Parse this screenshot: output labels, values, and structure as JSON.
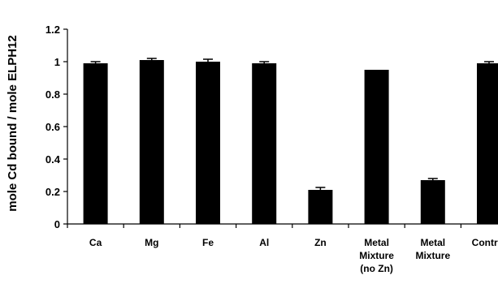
{
  "chart_data": {
    "type": "bar",
    "title": "",
    "xlabel": "",
    "ylabel": "mole Cd bound / mole ELPH12",
    "ylim": [
      0,
      1.2
    ],
    "yticks": [
      0,
      0.2,
      0.4,
      0.6,
      0.8,
      1,
      1.2
    ],
    "ytick_labels": [
      "0",
      "0.2",
      "0.4",
      "0.6",
      "0.8",
      "1",
      "1.2"
    ],
    "grid": false,
    "legend": "none",
    "bar_color": "#000000",
    "categories": [
      [
        "Ca"
      ],
      [
        "Mg"
      ],
      [
        "Fe"
      ],
      [
        "Al"
      ],
      [
        "Zn"
      ],
      [
        "Metal",
        "Mixture",
        "(no Zn)"
      ],
      [
        "Metal",
        "Mixture"
      ],
      [
        "Control"
      ]
    ],
    "values": [
      0.99,
      1.01,
      1.0,
      0.99,
      0.21,
      0.95,
      0.27,
      0.99
    ],
    "errors": [
      0.01,
      0.01,
      0.015,
      0.01,
      0.015,
      0.0,
      0.01,
      0.01
    ]
  }
}
